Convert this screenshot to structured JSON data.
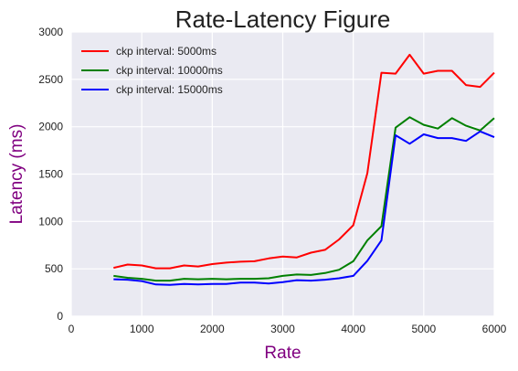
{
  "chart_data": {
    "type": "line",
    "title": "Rate-Latency Figure",
    "xlabel": "Rate",
    "ylabel": "Latency (ms)",
    "xlim": [
      0,
      6000
    ],
    "ylim": [
      0,
      3000
    ],
    "xticks": [
      0,
      1000,
      2000,
      3000,
      4000,
      5000,
      6000
    ],
    "yticks": [
      0,
      500,
      1000,
      1500,
      2000,
      2500,
      3000
    ],
    "grid": true,
    "legend_position": "top-left",
    "x": [
      600,
      800,
      1000,
      1200,
      1400,
      1600,
      1800,
      2000,
      2200,
      2400,
      2600,
      2800,
      3000,
      3200,
      3400,
      3600,
      3800,
      4000,
      4200,
      4400,
      4600,
      4800,
      5000,
      5200,
      5400,
      5600,
      5800,
      6000
    ],
    "series": [
      {
        "name": "ckp interval: 5000ms",
        "color": "#ff0000",
        "values": [
          510,
          545,
          535,
          505,
          505,
          535,
          525,
          550,
          565,
          575,
          580,
          610,
          630,
          620,
          670,
          700,
          810,
          960,
          1510,
          2570,
          2560,
          2760,
          2560,
          2590,
          2590,
          2440,
          2420,
          2570
        ]
      },
      {
        "name": "ckp interval: 10000ms",
        "color": "#008000",
        "values": [
          425,
          405,
          395,
          375,
          375,
          395,
          390,
          395,
          390,
          395,
          395,
          400,
          425,
          440,
          435,
          455,
          490,
          580,
          800,
          950,
          1990,
          2100,
          2020,
          1980,
          2090,
          2010,
          1960,
          2090
        ]
      },
      {
        "name": "ckp interval: 15000ms",
        "color": "#0000ff",
        "values": [
          390,
          385,
          370,
          335,
          330,
          340,
          335,
          340,
          340,
          355,
          355,
          345,
          360,
          380,
          375,
          385,
          400,
          425,
          585,
          800,
          1910,
          1820,
          1920,
          1880,
          1880,
          1850,
          1950,
          1890
        ]
      }
    ]
  }
}
